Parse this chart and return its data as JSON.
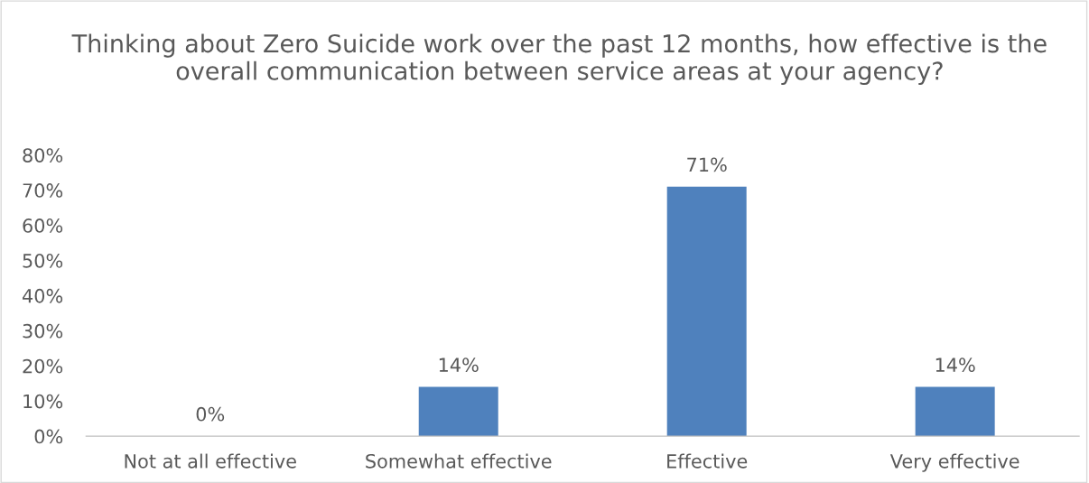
{
  "chart_data": {
    "type": "bar",
    "title": "Thinking about Zero Suicide work over the past 12 months, how effective is the overall communication between service areas at your agency?",
    "categories": [
      "Not at all effective",
      "Somewhat effective",
      "Effective",
      "Very effective"
    ],
    "values": [
      0,
      14,
      71,
      14
    ],
    "color": "#4f81bd",
    "value_labels": [
      "0%",
      "14%",
      "71%",
      "14%"
    ],
    "ylim": [
      0,
      80
    ],
    "yticks": [
      {
        "value": 0,
        "label": "0%"
      },
      {
        "value": 10,
        "label": "10%"
      },
      {
        "value": 20,
        "label": "20%"
      },
      {
        "value": 30,
        "label": "30%"
      },
      {
        "value": 40,
        "label": "40%"
      },
      {
        "value": 50,
        "label": "50%"
      },
      {
        "value": 60,
        "label": "60%"
      },
      {
        "value": 70,
        "label": "70%"
      },
      {
        "value": 80,
        "label": "80%"
      }
    ],
    "grid": false,
    "legend": false
  }
}
